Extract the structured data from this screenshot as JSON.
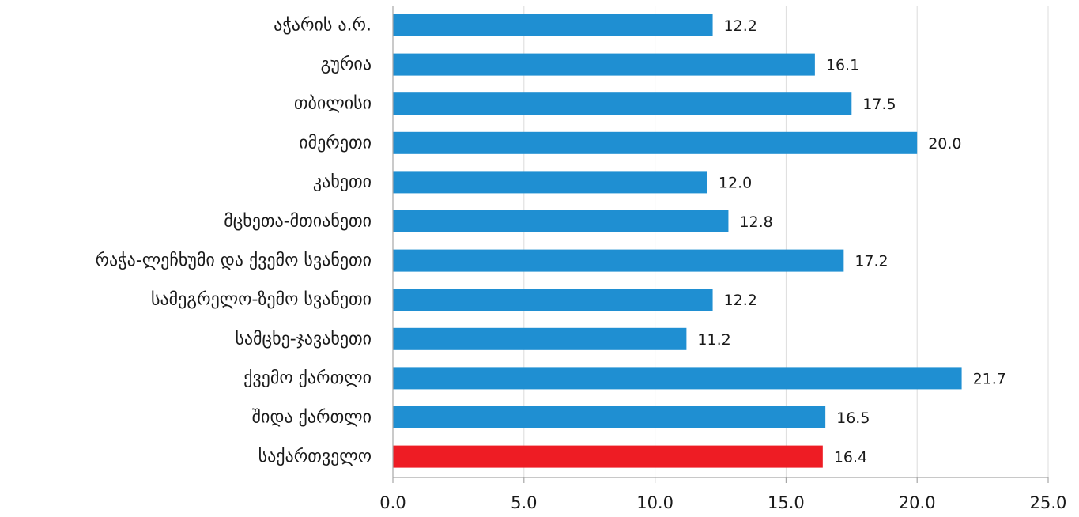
{
  "chart_data": {
    "type": "bar",
    "orientation": "horizontal",
    "categories": [
      "აჭარის ა.რ.",
      "გურია",
      "თბილისი",
      "იმერეთი",
      "კახეთი",
      "მცხეთა-მთიანეთი",
      "რაჭა-ლეჩხუმი და ქვემო სვანეთი",
      "სამეგრელო-ზემო სვანეთი",
      "სამცხე-ჯავახეთი",
      "ქვემო ქართლი",
      "შიდა ქართლი",
      "საქართველო"
    ],
    "values": [
      12.2,
      16.1,
      17.5,
      20.0,
      12.0,
      12.8,
      17.2,
      12.2,
      11.2,
      21.7,
      16.5,
      16.4
    ],
    "value_labels": [
      "12.2",
      "16.1",
      "17.5",
      "20.0",
      "12.0",
      "12.8",
      "17.2",
      "12.2",
      "11.2",
      "21.7",
      "16.5",
      "16.4"
    ],
    "highlight_category": "საქართველო",
    "colors": {
      "default": "#1f8fd2",
      "highlight": "#ee1c24"
    },
    "xlim": [
      0,
      25
    ],
    "xticks": [
      0,
      5,
      10,
      15,
      20,
      25
    ],
    "xtick_labels": [
      "0.0",
      "5.0",
      "10.0",
      "15.0",
      "20.0",
      "25.0"
    ],
    "grid": true,
    "title": "",
    "xlabel": "",
    "ylabel": ""
  }
}
